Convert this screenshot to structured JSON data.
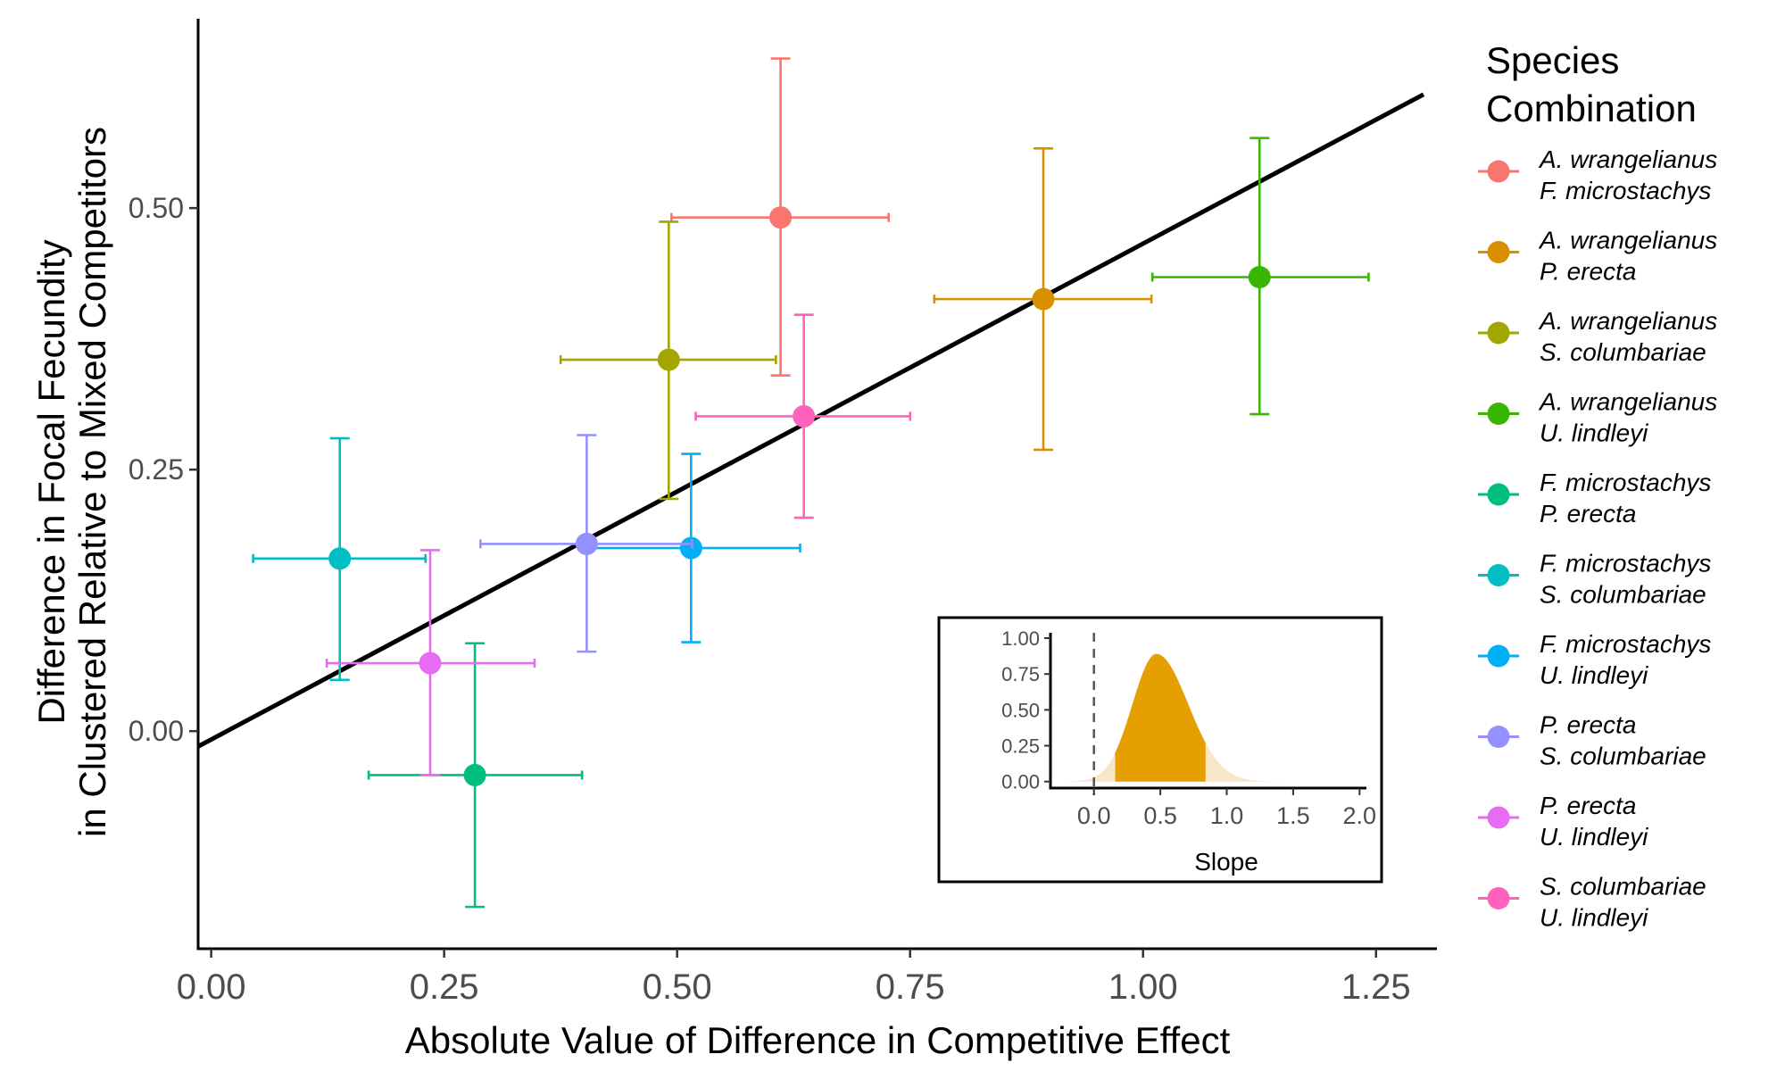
{
  "chart_data": {
    "type": "scatter",
    "title": "",
    "xlabel": "Absolute Value of Difference in Competitive Effect",
    "ylabel_lines": [
      "Difference in Focal Fecundity",
      "in Clustered Relative to Mixed Competitors"
    ],
    "xlim": [
      -0.014,
      1.301
    ],
    "ylim": [
      -0.208,
      0.681
    ],
    "xticks": [
      0.0,
      0.25,
      0.5,
      0.75,
      1.0,
      1.25
    ],
    "xtick_labels": [
      "0.00",
      "0.25",
      "0.50",
      "0.75",
      "1.00",
      "1.25"
    ],
    "yticks": [
      0.0,
      0.25,
      0.5
    ],
    "ytick_labels": [
      "0.00",
      "0.25",
      "0.50"
    ],
    "grid": false,
    "legend": {
      "title_lines": [
        "Species",
        "Combination"
      ],
      "placement": "right"
    },
    "regression_line": {
      "intercept": -0.008,
      "slope": 0.474,
      "color": "#000000"
    },
    "series": [
      {
        "name": "A. wrangelianus / F. microstachys",
        "label_lines": [
          "A. wrangelianus",
          "F. microstachys"
        ],
        "color": "#F8766D",
        "x": 0.611,
        "x_low": 0.494,
        "x_high": 0.727,
        "y": 0.491,
        "y_low": 0.34,
        "y_high": 0.643
      },
      {
        "name": "A. wrangelianus / P. erecta",
        "label_lines": [
          "A. wrangelianus",
          "P. erecta"
        ],
        "color": "#D89000",
        "x": 0.893,
        "x_low": 0.776,
        "x_high": 1.009,
        "y": 0.413,
        "y_low": 0.269,
        "y_high": 0.557
      },
      {
        "name": "A. wrangelianus / S. columbariae",
        "label_lines": [
          "A. wrangelianus",
          "S. columbariae"
        ],
        "color": "#A3A500",
        "x": 0.491,
        "x_low": 0.375,
        "x_high": 0.606,
        "y": 0.355,
        "y_low": 0.222,
        "y_high": 0.487
      },
      {
        "name": "A. wrangelianus / U. lindleyi",
        "label_lines": [
          "A. wrangelianus",
          "U. lindleyi"
        ],
        "color": "#39B600",
        "x": 1.125,
        "x_low": 1.01,
        "x_high": 1.242,
        "y": 0.434,
        "y_low": 0.303,
        "y_high": 0.567
      },
      {
        "name": "F. microstachys / P. erecta",
        "label_lines": [
          "F. microstachys",
          "P. erecta"
        ],
        "color": "#00BF7D",
        "x": 0.283,
        "x_low": 0.169,
        "x_high": 0.398,
        "y": -0.042,
        "y_low": -0.168,
        "y_high": 0.084
      },
      {
        "name": "F. microstachys / S. columbariae",
        "label_lines": [
          "F. microstachys",
          "S. columbariae"
        ],
        "color": "#00BFC4",
        "x": 0.138,
        "x_low": 0.045,
        "x_high": 0.23,
        "y": 0.165,
        "y_low": 0.049,
        "y_high": 0.28
      },
      {
        "name": "F. microstachys / U. lindleyi",
        "label_lines": [
          "F. microstachys",
          "U. lindleyi"
        ],
        "color": "#00B0F6",
        "x": 0.515,
        "x_low": 0.4,
        "x_high": 0.632,
        "y": 0.175,
        "y_low": 0.085,
        "y_high": 0.265
      },
      {
        "name": "P. erecta / S. columbariae",
        "label_lines": [
          "P. erecta",
          "S. columbariae"
        ],
        "color": "#9590FF",
        "x": 0.403,
        "x_low": 0.289,
        "x_high": 0.516,
        "y": 0.179,
        "y_low": 0.076,
        "y_high": 0.283
      },
      {
        "name": "P. erecta / U. lindleyi",
        "label_lines": [
          "P. erecta",
          "U. lindleyi"
        ],
        "color": "#E76BF3",
        "x": 0.235,
        "x_low": 0.124,
        "x_high": 0.347,
        "y": 0.065,
        "y_low": -0.042,
        "y_high": 0.173
      },
      {
        "name": "S. columbariae / U. lindleyi",
        "label_lines": [
          "S. columbariae",
          "U. lindleyi"
        ],
        "color": "#FF62BC",
        "x": 0.636,
        "x_low": 0.52,
        "x_high": 0.75,
        "y": 0.301,
        "y_low": 0.204,
        "y_high": 0.398
      }
    ],
    "inset": {
      "type": "area",
      "xlabel": "Slope",
      "ylabel": "",
      "xlim": [
        -0.33,
        2.05
      ],
      "ylim": [
        0,
        1.04
      ],
      "xticks": [
        0.0,
        0.5,
        1.0,
        1.5,
        2.0
      ],
      "xtick_labels": [
        "0.0",
        "0.5",
        "1.0",
        "1.5",
        "2.0"
      ],
      "yticks": [
        0.0,
        0.25,
        0.5,
        0.75,
        1.0
      ],
      "ytick_labels": [
        "0.00",
        "0.25",
        "0.50",
        "0.75",
        "1.00"
      ],
      "reference_line_x": 0.0,
      "density": {
        "mean": 0.47,
        "sd": 0.2,
        "skew_right": 0.04,
        "peak": 0.89
      },
      "credible_interval": [
        0.16,
        0.84
      ],
      "fill_color": "#E69F00",
      "tail_color": "#F9E6C8"
    }
  }
}
